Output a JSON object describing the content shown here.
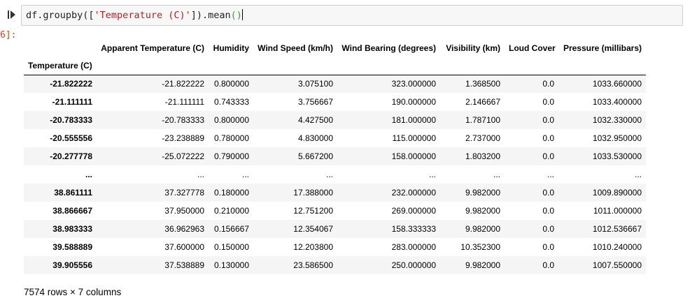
{
  "cell": {
    "code_tokens": [
      {
        "t": "df.groupby([",
        "c": "tok-v"
      },
      {
        "t": "'Temperature (C)'",
        "c": "tok-s"
      },
      {
        "t": "]).mean",
        "c": "tok-v"
      },
      {
        "t": "()",
        "c": "tok-p"
      }
    ],
    "output_prompt": "6]:"
  },
  "dataframe": {
    "columns": [
      "Apparent Temperature (C)",
      "Humidity",
      "Wind Speed (km/h)",
      "Wind Bearing (degrees)",
      "Visibility (km)",
      "Loud Cover",
      "Pressure (millibars)"
    ],
    "index_name": "Temperature (C)",
    "rows": [
      {
        "index": "-21.822222",
        "values": [
          "-21.822222",
          "0.800000",
          "3.075100",
          "323.000000",
          "1.368500",
          "0.0",
          "1033.660000"
        ]
      },
      {
        "index": "-21.111111",
        "values": [
          "-21.111111",
          "0.743333",
          "3.756667",
          "190.000000",
          "2.146667",
          "0.0",
          "1033.400000"
        ]
      },
      {
        "index": "-20.783333",
        "values": [
          "-20.783333",
          "0.800000",
          "4.427500",
          "181.000000",
          "1.787100",
          "0.0",
          "1032.330000"
        ]
      },
      {
        "index": "-20.555556",
        "values": [
          "-23.238889",
          "0.780000",
          "4.830000",
          "115.000000",
          "2.737000",
          "0.0",
          "1032.950000"
        ]
      },
      {
        "index": "-20.277778",
        "values": [
          "-25.072222",
          "0.790000",
          "5.667200",
          "158.000000",
          "1.803200",
          "0.0",
          "1033.530000"
        ]
      },
      {
        "index": "...",
        "values": [
          "...",
          "...",
          "...",
          "...",
          "...",
          "...",
          "..."
        ]
      },
      {
        "index": "38.861111",
        "values": [
          "37.327778",
          "0.180000",
          "17.388000",
          "232.000000",
          "9.982000",
          "0.0",
          "1009.890000"
        ]
      },
      {
        "index": "38.866667",
        "values": [
          "37.950000",
          "0.210000",
          "12.751200",
          "269.000000",
          "9.982000",
          "0.0",
          "1011.000000"
        ]
      },
      {
        "index": "38.983333",
        "values": [
          "36.962963",
          "0.156667",
          "12.354067",
          "158.333333",
          "9.982000",
          "0.0",
          "1012.536667"
        ]
      },
      {
        "index": "39.588889",
        "values": [
          "37.600000",
          "0.150000",
          "12.203800",
          "283.000000",
          "10.352300",
          "0.0",
          "1010.240000"
        ]
      },
      {
        "index": "39.905556",
        "values": [
          "37.538889",
          "0.130000",
          "23.586500",
          "250.000000",
          "9.982000",
          "0.0",
          "1007.550000"
        ]
      }
    ],
    "shape_text": "7574 rows × 7 columns"
  }
}
